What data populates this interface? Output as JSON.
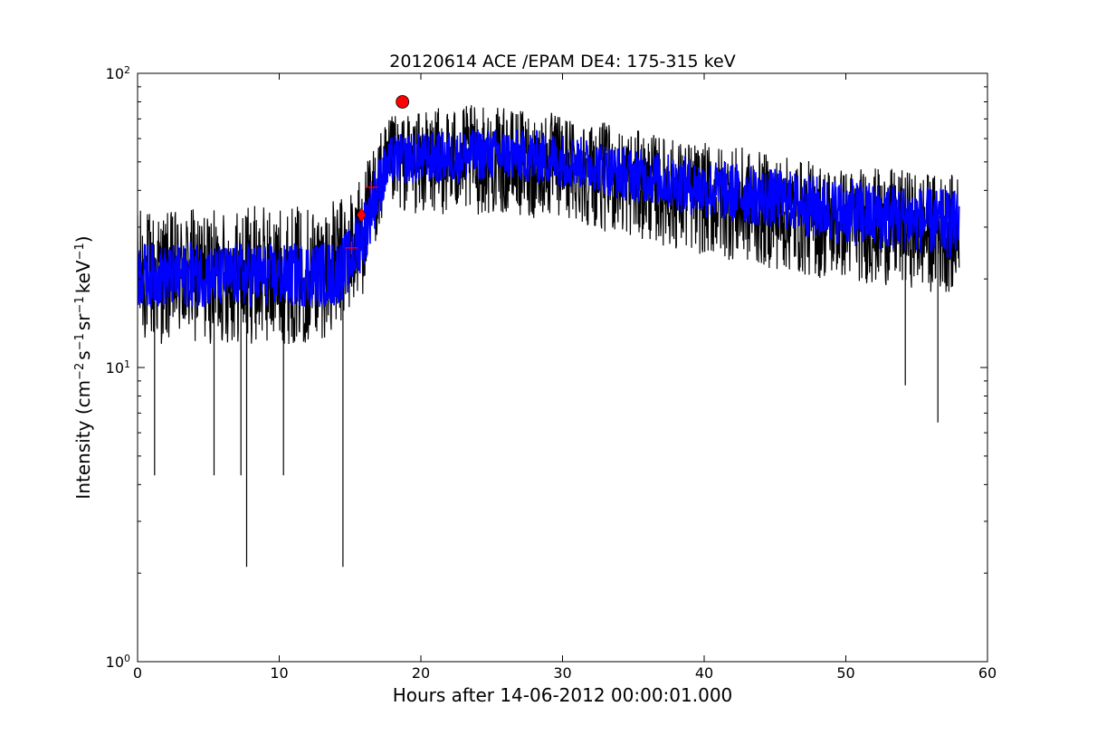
{
  "chart_data": {
    "type": "line",
    "title": "20120614 ACE /EPAM DE4: 175-315 keV",
    "xlabel": "Hours after 14-06-2012 00:00:01.000",
    "ylabel": {
      "lead": "Intensity (cm",
      "sup1": "−2",
      "part2": "s",
      "sup2": "−1",
      "part3": "sr",
      "sup3": "−1",
      "part4": "keV",
      "sup4": "−1",
      "tail": ")"
    },
    "xlim": [
      0,
      60
    ],
    "ylim": [
      1,
      100
    ],
    "yscale": "log",
    "grid": false,
    "x_ticks": [
      0,
      10,
      20,
      30,
      40,
      50,
      60
    ],
    "x_tick_labels": [
      "0",
      "10",
      "20",
      "30",
      "40",
      "50",
      "60"
    ],
    "y_ticks": [
      {
        "base": "10",
        "exp": "0",
        "value": 1
      },
      {
        "base": "10",
        "exp": "1",
        "value": 10
      },
      {
        "base": "10",
        "exp": "2",
        "value": 100
      }
    ],
    "series": [
      {
        "color": "#000000",
        "style": "noisy-line",
        "x": [
          0,
          2,
          4,
          6,
          8,
          10,
          12,
          14,
          15,
          16,
          17,
          18,
          20,
          22,
          24,
          26,
          28,
          30,
          32,
          34,
          36,
          38,
          40,
          42,
          44,
          46,
          48,
          50,
          52,
          54,
          56,
          58
        ],
        "y": [
          21,
          20,
          21,
          20,
          21,
          20,
          21,
          21,
          24,
          30,
          42,
          52,
          53,
          53,
          54,
          54,
          53,
          52,
          50,
          47,
          45,
          43,
          41,
          40,
          38,
          37,
          35,
          34,
          33,
          32,
          31,
          30
        ],
        "spread_low": [
          12,
          12,
          12,
          12,
          12,
          12,
          12,
          13,
          15,
          18,
          28,
          34,
          33,
          33,
          33,
          33,
          32,
          32,
          30,
          28,
          27,
          25,
          24,
          23,
          22,
          21,
          20,
          20,
          19,
          19,
          18,
          18
        ],
        "spread_high": [
          35,
          34,
          35,
          34,
          36,
          35,
          36,
          37,
          40,
          48,
          62,
          72,
          74,
          78,
          78,
          76,
          75,
          73,
          70,
          66,
          63,
          60,
          58,
          57,
          54,
          52,
          50,
          48,
          48,
          47,
          46,
          45
        ],
        "spikes_down": [
          {
            "x": 1.2,
            "y": 4.3
          },
          {
            "x": 5.4,
            "y": 4.3
          },
          {
            "x": 7.3,
            "y": 4.3
          },
          {
            "x": 7.7,
            "y": 2.1
          },
          {
            "x": 10.3,
            "y": 4.3
          },
          {
            "x": 14.5,
            "y": 2.1
          },
          {
            "x": 54.2,
            "y": 8.7
          },
          {
            "x": 56.5,
            "y": 6.5
          }
        ]
      },
      {
        "color": "#0000ff",
        "style": "smoothed-band",
        "x": [
          0,
          2,
          4,
          6,
          8,
          10,
          12,
          14,
          15,
          16,
          17,
          18,
          20,
          22,
          24,
          26,
          28,
          30,
          32,
          34,
          36,
          38,
          40,
          42,
          44,
          46,
          48,
          50,
          52,
          54,
          56,
          58
        ],
        "y": [
          21,
          20,
          21,
          20,
          21,
          20,
          21,
          21,
          24,
          30,
          42,
          52,
          53,
          53,
          54,
          54,
          53,
          52,
          50,
          47,
          45,
          43,
          41,
          40,
          38,
          37,
          35,
          34,
          33,
          32,
          31,
          30
        ],
        "band_low": [
          16,
          16,
          16,
          16,
          16,
          16,
          16,
          16,
          18,
          22,
          32,
          42,
          42,
          42,
          43,
          43,
          42,
          41,
          40,
          37,
          36,
          34,
          32,
          31,
          30,
          29,
          27,
          26,
          25,
          25,
          24,
          23
        ],
        "band_high": [
          27,
          26,
          27,
          26,
          27,
          26,
          27,
          27,
          30,
          38,
          52,
          62,
          63,
          64,
          65,
          65,
          64,
          63,
          60,
          57,
          55,
          53,
          51,
          50,
          48,
          47,
          45,
          44,
          43,
          42,
          41,
          40
        ]
      }
    ],
    "markers": [
      {
        "name": "plus",
        "x": 15.1,
        "y": 25.5,
        "color": "#ff0000"
      },
      {
        "name": "diamond",
        "x": 15.8,
        "y": 33.0,
        "color": "#ff0000"
      },
      {
        "name": "plus",
        "x": 16.5,
        "y": 41.0,
        "color": "#ff0000"
      },
      {
        "name": "circle",
        "x": 18.7,
        "y": 80.0,
        "color": "#ff0000"
      }
    ]
  }
}
